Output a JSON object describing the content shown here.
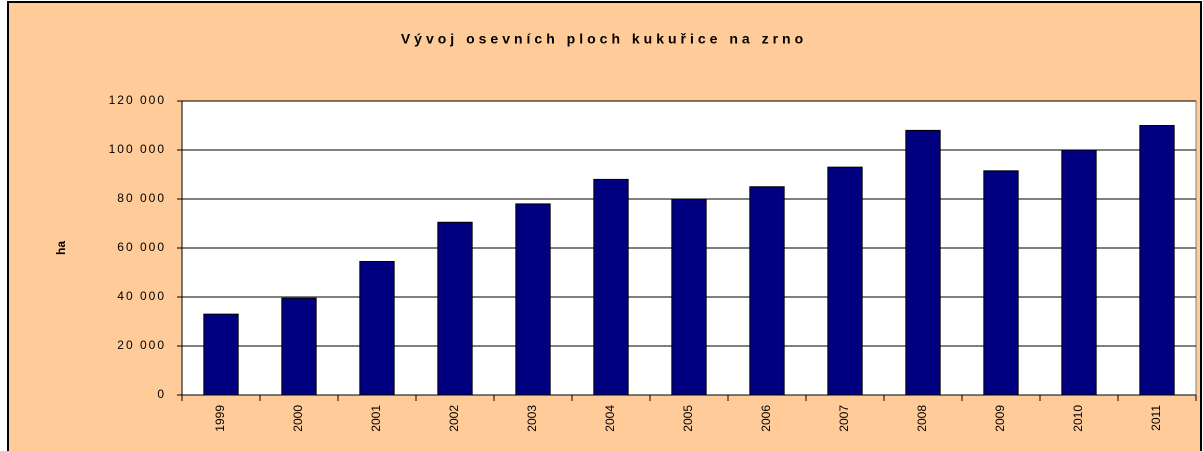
{
  "chart_data": {
    "type": "bar",
    "title": "Vývoj osevních ploch kukuřice na zrno",
    "y_label": "ha",
    "categories": [
      "1999",
      "2000",
      "2001",
      "2002",
      "2003",
      "2004",
      "2005",
      "2006",
      "2007",
      "2008",
      "2009",
      "2010",
      "2011"
    ],
    "values": [
      33000,
      39500,
      54500,
      70500,
      78000,
      88000,
      80000,
      85000,
      93000,
      108000,
      91500,
      100000,
      110000
    ],
    "color": "#000080",
    "ylim": [
      0,
      120000
    ],
    "yticks": [
      0,
      {
        "value": 20000,
        "label": "20 000"
      },
      {
        "value": 40000,
        "label": "40 000"
      },
      {
        "value": 60000,
        "label": "60 000"
      },
      {
        "value": 80000,
        "label": "80 000"
      },
      {
        "value": 100000,
        "label": "100 000"
      },
      {
        "value": 120000,
        "label": "120 000"
      }
    ],
    "grid": true
  }
}
